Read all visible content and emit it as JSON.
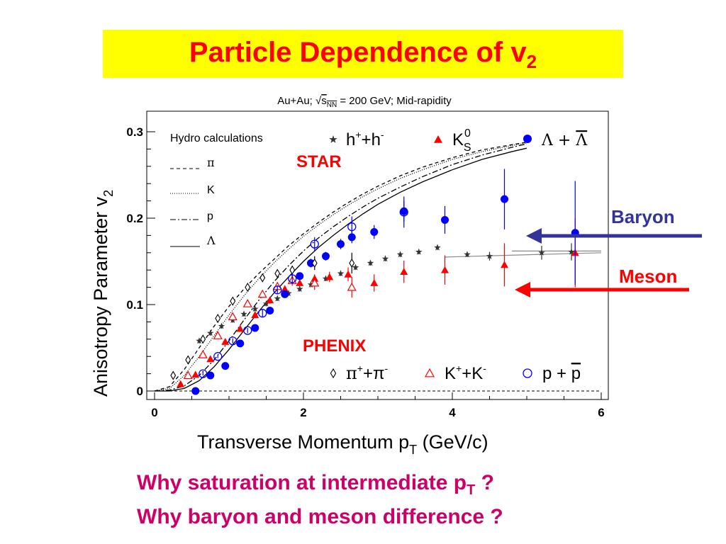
{
  "title": {
    "main": "Particle Dependence of v",
    "sub": "2"
  },
  "colors": {
    "star_blue": "#0000ff",
    "star_red": "#ff0000",
    "title_red": "#ff0000",
    "title_bg": "#ffff00",
    "question": "#cc0066",
    "baryon_arrow": "#333399",
    "meson_arrow": "#ff0000"
  },
  "chart_data": {
    "type": "scatter",
    "title": "Au+Au; √sNN = 200 GeV; Mid-rapidity",
    "title_parts": {
      "pre": "Au+Au; ",
      "sqrt": "√",
      "s": "s",
      "sub": "NN",
      "post": " = 200 GeV; Mid-rapidity"
    },
    "xlabel": "Transverse Momentum p",
    "xlabel_sub": "T",
    "xlabel_unit": " (GeV/c)",
    "ylabel": "Anisotropy Parameter v",
    "ylabel_sub": "2",
    "xlim": [
      0,
      6
    ],
    "ylim": [
      -0.005,
      0.32
    ],
    "xticks": [
      0,
      2,
      4,
      6
    ],
    "yticks": [
      0,
      0.1,
      0.2,
      0.3
    ],
    "xtick_labels": [
      "0",
      "2",
      "4",
      "6"
    ],
    "ytick_labels": [
      "0",
      "0.1",
      "0.2",
      "0.3"
    ],
    "grid": false,
    "legend_hydro_title": "Hydro calculations",
    "legend_hydro": [
      "π",
      "K",
      "p",
      "Λ"
    ],
    "experiment_labels": [
      "STAR",
      "PHENIX"
    ],
    "star_legend": [
      {
        "sym": "h",
        "sup1": "+",
        "mid": "+h",
        "sup2": "-"
      },
      {
        "sym": "K",
        "sup": "0",
        "sub": "S"
      },
      {
        "sym": "Λ + ",
        "bar": "Λ"
      }
    ],
    "phenix_legend": [
      {
        "a": "π",
        "sa": "+",
        "b": "+π",
        "sb": "-"
      },
      {
        "a": "K",
        "sa": "+",
        "b": "+K",
        "sb": "-"
      },
      {
        "a": "p + ",
        "bar": "p"
      }
    ],
    "series": [
      {
        "name": "STAR h+ + h-",
        "marker": "star",
        "color": "#333333",
        "x": [
          0.6,
          0.75,
          0.9,
          1.05,
          1.2,
          1.35,
          1.5,
          1.65,
          1.8,
          1.95,
          2.1,
          2.3,
          2.5,
          2.7,
          2.9,
          3.1,
          3.3,
          3.55,
          3.8,
          4.2,
          4.5,
          5.2,
          5.6
        ],
        "y": [
          0.058,
          0.067,
          0.075,
          0.082,
          0.089,
          0.095,
          0.101,
          0.107,
          0.113,
          0.118,
          0.123,
          0.13,
          0.136,
          0.143,
          0.148,
          0.153,
          0.158,
          0.161,
          0.166,
          0.158,
          0.156,
          0.16,
          0.161
        ],
        "yerr": [
          0.003,
          0.003,
          0.003,
          0.003,
          0.003,
          0.003,
          0.003,
          0.003,
          0.003,
          0.003,
          0.003,
          0.003,
          0.003,
          0.003,
          0.003,
          0.003,
          0.003,
          0.003,
          0.003,
          0.003,
          0.005,
          0.008,
          0.01
        ]
      },
      {
        "name": "STAR K0S",
        "marker": "triangle",
        "color": "#ff0000",
        "x": [
          0.35,
          0.55,
          0.75,
          0.95,
          1.15,
          1.35,
          1.55,
          1.75,
          1.95,
          2.15,
          2.35,
          2.6,
          2.95,
          3.35,
          3.9,
          4.7,
          5.65
        ],
        "y": [
          0.008,
          0.019,
          0.037,
          0.057,
          0.072,
          0.088,
          0.105,
          0.118,
          0.125,
          0.13,
          0.132,
          0.135,
          0.125,
          0.138,
          0.14,
          0.146,
          0.16
        ],
        "yerr": [
          0.003,
          0.003,
          0.003,
          0.003,
          0.003,
          0.003,
          0.004,
          0.004,
          0.004,
          0.005,
          0.006,
          0.008,
          0.01,
          0.013,
          0.017,
          0.025,
          0.04
        ]
      },
      {
        "name": "STAR Λ + anti-Λ",
        "marker": "circle",
        "color": "#0000ff",
        "x": [
          0.55,
          0.75,
          0.95,
          1.15,
          1.35,
          1.55,
          1.75,
          1.95,
          2.1,
          2.3,
          2.5,
          2.65,
          2.95,
          3.35,
          3.9,
          4.7,
          5.65
        ],
        "y": [
          0.0,
          0.018,
          0.029,
          0.055,
          0.073,
          0.093,
          0.112,
          0.133,
          0.148,
          0.156,
          0.17,
          0.178,
          0.184,
          0.208,
          0.198,
          0.222,
          0.183
        ],
        "yerr": [
          0.004,
          0.003,
          0.003,
          0.003,
          0.003,
          0.003,
          0.004,
          0.004,
          0.005,
          0.005,
          0.006,
          0.007,
          0.008,
          0.012,
          0.016,
          0.035,
          0.06
        ]
      },
      {
        "name": "PHENIX π+ + π-",
        "marker": "diamond",
        "color": "#000000",
        "x": [
          0.25,
          0.45,
          0.65,
          0.85,
          1.05,
          1.25,
          1.45,
          1.65,
          1.85,
          2.15,
          2.65
        ],
        "y": [
          0.018,
          0.036,
          0.06,
          0.084,
          0.104,
          0.12,
          0.131,
          0.136,
          0.14,
          0.148,
          0.148
        ],
        "yerr": [
          0.002,
          0.002,
          0.002,
          0.002,
          0.002,
          0.003,
          0.003,
          0.004,
          0.005,
          0.008,
          0.012
        ]
      },
      {
        "name": "PHENIX K+ + K-",
        "marker": "triangle-open",
        "color": "#ff0000",
        "x": [
          0.45,
          0.65,
          0.85,
          1.05,
          1.25,
          1.45,
          1.65,
          1.85,
          2.15,
          2.65
        ],
        "y": [
          0.018,
          0.042,
          0.064,
          0.086,
          0.101,
          0.112,
          0.121,
          0.128,
          0.125,
          0.12
        ],
        "yerr": [
          0.002,
          0.002,
          0.002,
          0.003,
          0.003,
          0.004,
          0.005,
          0.006,
          0.008,
          0.012
        ]
      },
      {
        "name": "PHENIX p + anti-p",
        "marker": "circle-open",
        "color": "#0000ff",
        "x": [
          0.65,
          0.85,
          1.05,
          1.25,
          1.45,
          1.65,
          1.85,
          2.15,
          2.65,
          3.35
        ],
        "y": [
          0.02,
          0.04,
          0.058,
          0.07,
          0.09,
          0.117,
          0.13,
          0.17,
          0.19,
          0.207
        ],
        "yerr": [
          0.002,
          0.002,
          0.003,
          0.003,
          0.004,
          0.005,
          0.006,
          0.008,
          0.012,
          0.018
        ]
      },
      {
        "name": "Hydro π",
        "line": "dashed",
        "color": "#000000",
        "x": [
          0,
          0.2,
          0.4,
          0.6,
          0.8,
          1.0,
          1.2,
          1.4,
          1.6,
          1.8,
          2.0,
          2.2,
          2.4,
          2.6,
          2.8,
          3.0,
          3.3,
          3.6,
          4.0,
          4.4,
          4.8,
          5.0
        ],
        "y": [
          0,
          0.005,
          0.025,
          0.05,
          0.075,
          0.098,
          0.118,
          0.136,
          0.152,
          0.168,
          0.182,
          0.195,
          0.207,
          0.218,
          0.228,
          0.237,
          0.249,
          0.259,
          0.27,
          0.279,
          0.285,
          0.288
        ]
      },
      {
        "name": "Hydro K",
        "line": "dotted",
        "color": "#000000",
        "x": [
          0,
          0.2,
          0.4,
          0.6,
          0.8,
          1.0,
          1.2,
          1.4,
          1.6,
          1.8,
          2.0,
          2.2,
          2.4,
          2.6,
          2.8,
          3.0,
          3.3,
          3.6,
          4.0,
          4.4,
          4.8,
          5.0
        ],
        "y": [
          0,
          0.003,
          0.018,
          0.04,
          0.064,
          0.088,
          0.11,
          0.13,
          0.148,
          0.164,
          0.179,
          0.192,
          0.204,
          0.215,
          0.225,
          0.234,
          0.246,
          0.256,
          0.268,
          0.277,
          0.284,
          0.287
        ]
      },
      {
        "name": "Hydro p",
        "line": "dashdot",
        "color": "#000000",
        "x": [
          0,
          0.2,
          0.4,
          0.6,
          0.8,
          1.0,
          1.2,
          1.4,
          1.6,
          1.8,
          2.0,
          2.2,
          2.4,
          2.6,
          2.8,
          3.0,
          3.3,
          3.6,
          4.0,
          4.4,
          4.8,
          5.0
        ],
        "y": [
          0,
          0.001,
          0.006,
          0.018,
          0.036,
          0.058,
          0.082,
          0.105,
          0.126,
          0.145,
          0.162,
          0.177,
          0.19,
          0.202,
          0.213,
          0.223,
          0.236,
          0.248,
          0.262,
          0.273,
          0.282,
          0.286
        ]
      },
      {
        "name": "Hydro Λ",
        "line": "solid",
        "color": "#000000",
        "x": [
          0,
          0.2,
          0.4,
          0.6,
          0.8,
          1.0,
          1.2,
          1.4,
          1.6,
          1.8,
          2.0,
          2.2,
          2.4,
          2.6,
          2.8,
          3.0,
          3.3,
          3.6,
          4.0,
          4.4,
          4.8,
          5.0
        ],
        "y": [
          0,
          0.0,
          0.003,
          0.012,
          0.028,
          0.048,
          0.07,
          0.092,
          0.113,
          0.132,
          0.15,
          0.166,
          0.18,
          0.193,
          0.205,
          0.216,
          0.23,
          0.242,
          0.256,
          0.268,
          0.277,
          0.281
        ]
      }
    ],
    "quark_scaling_lines": [
      {
        "name": "meson band",
        "x": [
          3.9,
          6.0
        ],
        "y": [
          0.155,
          0.16
        ]
      },
      {
        "name": "baryon band",
        "x": [
          4.8,
          6.0
        ],
        "y": [
          0.162,
          0.162
        ]
      }
    ]
  },
  "annotations": {
    "baryon": "Baryon",
    "meson": "Meson"
  },
  "questions": {
    "q1_pre": "Why saturation at intermediate p",
    "q1_sub": "T",
    "q1_post": " ?",
    "q2": "Why baryon and meson difference ?"
  }
}
